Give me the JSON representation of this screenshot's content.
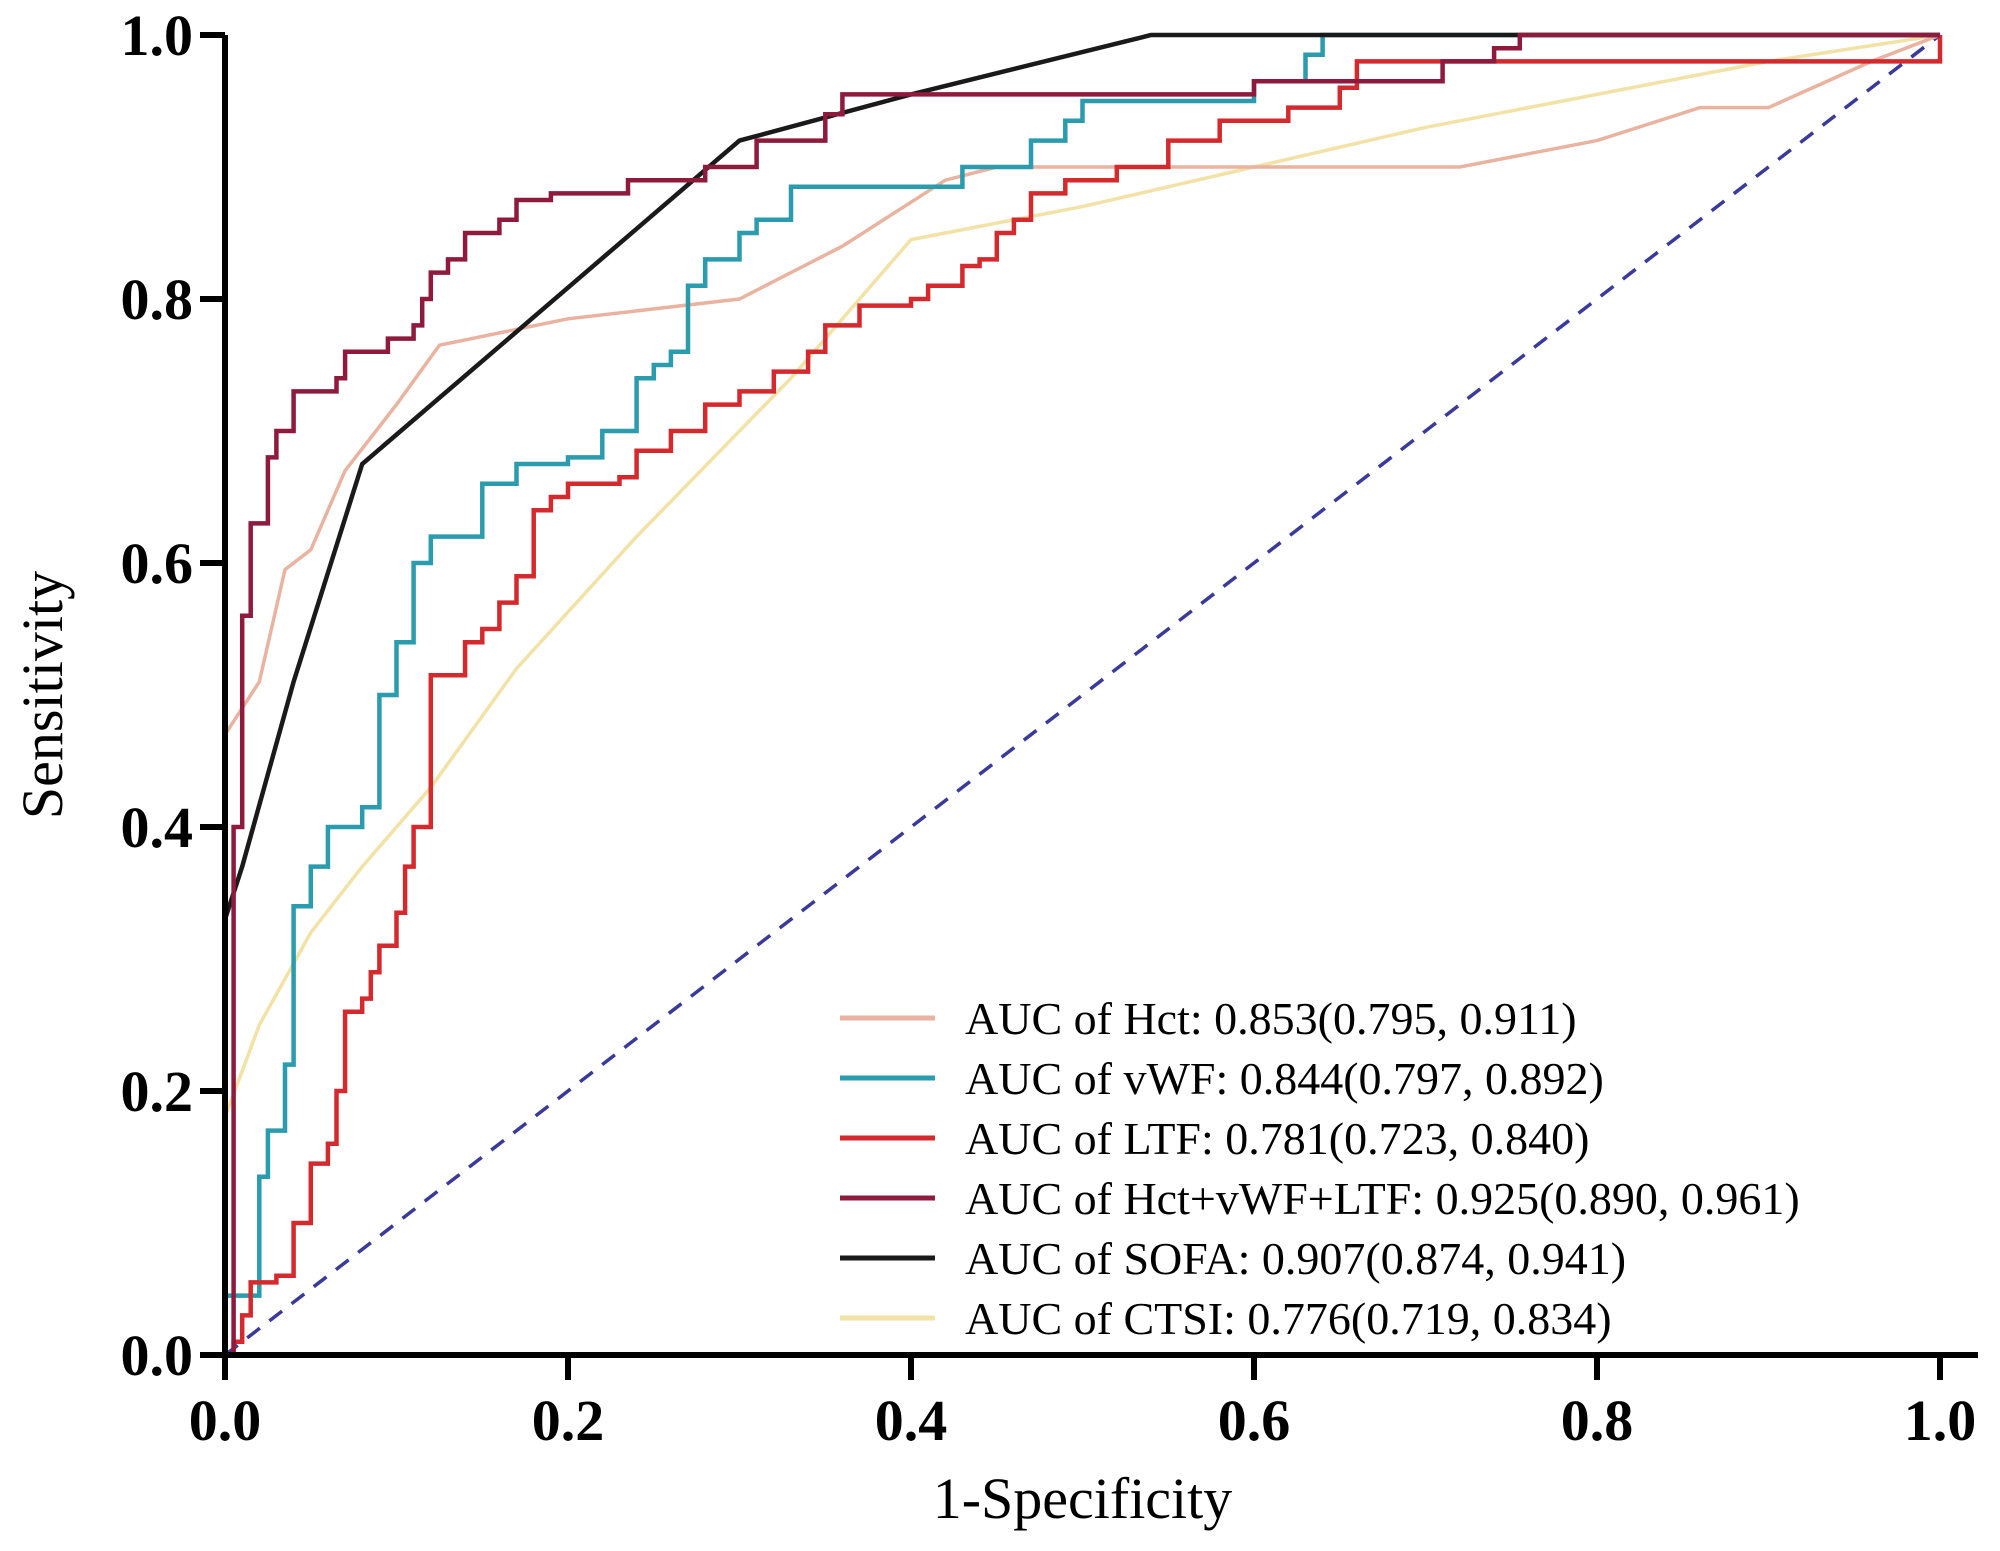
{
  "chart_data": {
    "type": "line",
    "title": "",
    "xlabel": "1-Specificity",
    "ylabel": "Sensitivity",
    "xlim": [
      0,
      1.0
    ],
    "ylim": [
      0,
      1.0
    ],
    "xticks": [
      "0.0",
      "0.2",
      "0.4",
      "0.6",
      "0.8",
      "1.0"
    ],
    "yticks": [
      "0.0",
      "0.2",
      "0.4",
      "0.6",
      "0.8",
      "1.0"
    ],
    "grid": false,
    "legend_position": "bottom-right",
    "reference_line": {
      "name": "Reference",
      "style": "dashed",
      "color": "#3a3a9a",
      "x": [
        0,
        1
      ],
      "y": [
        0,
        1
      ]
    },
    "series": [
      {
        "name": "AUC of Hct: 0.853(0.795, 0.911)",
        "color": "#E9B3A0",
        "x": [
          0,
          0,
          0.02,
          0.035,
          0.05,
          0.07,
          0.1,
          0.125,
          0.2,
          0.3,
          0.36,
          0.42,
          0.45,
          0.72,
          0.8,
          0.86,
          0.9,
          0.96,
          1.0
        ],
        "y": [
          0,
          0.47,
          0.51,
          0.595,
          0.61,
          0.67,
          0.72,
          0.765,
          0.785,
          0.8,
          0.84,
          0.89,
          0.9,
          0.9,
          0.92,
          0.945,
          0.945,
          0.98,
          1.0
        ]
      },
      {
        "name": "AUC of vWF: 0.844(0.797, 0.892)",
        "color": "#2B9BAE",
        "step": true,
        "x": [
          0,
          0,
          0.02,
          0.02,
          0.025,
          0.035,
          0.04,
          0.05,
          0.06,
          0.08,
          0.09,
          0.1,
          0.11,
          0.12,
          0.15,
          0.17,
          0.2,
          0.22,
          0.24,
          0.25,
          0.26,
          0.27,
          0.28,
          0.3,
          0.31,
          0.33,
          0.42,
          0.43,
          0.47,
          0.49,
          0.5,
          0.58,
          0.6,
          0.63,
          0.64,
          1.0
        ],
        "y": [
          0,
          0.045,
          0.045,
          0.135,
          0.17,
          0.22,
          0.34,
          0.37,
          0.4,
          0.415,
          0.5,
          0.54,
          0.6,
          0.62,
          0.66,
          0.675,
          0.68,
          0.7,
          0.74,
          0.75,
          0.76,
          0.81,
          0.83,
          0.85,
          0.86,
          0.885,
          0.885,
          0.9,
          0.92,
          0.935,
          0.95,
          0.95,
          0.965,
          0.985,
          1.0,
          1.0
        ]
      },
      {
        "name": "AUC of LTF: 0.781(0.723, 0.840)",
        "color": "#D42A2E",
        "step": true,
        "x": [
          0,
          0.005,
          0.01,
          0.015,
          0.03,
          0.04,
          0.05,
          0.06,
          0.065,
          0.07,
          0.08,
          0.085,
          0.09,
          0.1,
          0.105,
          0.11,
          0.12,
          0.12,
          0.14,
          0.15,
          0.16,
          0.17,
          0.18,
          0.18,
          0.19,
          0.2,
          0.23,
          0.24,
          0.26,
          0.28,
          0.3,
          0.32,
          0.34,
          0.35,
          0.37,
          0.4,
          0.41,
          0.43,
          0.44,
          0.45,
          0.46,
          0.47,
          0.49,
          0.52,
          0.55,
          0.58,
          0.62,
          0.65,
          0.66,
          1.0,
          1.0
        ],
        "y": [
          0,
          0.01,
          0.03,
          0.055,
          0.06,
          0.1,
          0.145,
          0.16,
          0.2,
          0.26,
          0.27,
          0.29,
          0.31,
          0.335,
          0.37,
          0.4,
          0.41,
          0.515,
          0.54,
          0.55,
          0.57,
          0.59,
          0.61,
          0.64,
          0.65,
          0.66,
          0.665,
          0.685,
          0.7,
          0.72,
          0.73,
          0.745,
          0.76,
          0.78,
          0.795,
          0.8,
          0.81,
          0.825,
          0.83,
          0.85,
          0.86,
          0.88,
          0.89,
          0.9,
          0.92,
          0.935,
          0.945,
          0.96,
          0.98,
          0.98,
          1.0
        ]
      },
      {
        "name": "AUC of Hct+vWF+LTF: 0.925(0.890, 0.961)",
        "color": "#8E1B3E",
        "step": true,
        "x": [
          0,
          0.005,
          0.005,
          0.01,
          0.015,
          0.025,
          0.03,
          0.04,
          0.065,
          0.07,
          0.095,
          0.11,
          0.115,
          0.12,
          0.13,
          0.14,
          0.16,
          0.17,
          0.19,
          0.235,
          0.28,
          0.31,
          0.35,
          0.36,
          0.6,
          0.71,
          0.74,
          0.755,
          1.0
        ],
        "y": [
          0,
          0.03,
          0.4,
          0.56,
          0.63,
          0.68,
          0.7,
          0.73,
          0.74,
          0.76,
          0.77,
          0.78,
          0.8,
          0.82,
          0.83,
          0.85,
          0.86,
          0.875,
          0.88,
          0.89,
          0.9,
          0.92,
          0.94,
          0.955,
          0.965,
          0.98,
          0.99,
          1.0,
          1.0
        ]
      },
      {
        "name": "AUC of SOFA: 0.907(0.874, 0.941)",
        "color": "#1A1A1A",
        "x": [
          0,
          0,
          0.01,
          0.025,
          0.04,
          0.08,
          0.3,
          0.4,
          0.54,
          1.0
        ],
        "y": [
          0,
          0.33,
          0.37,
          0.44,
          0.51,
          0.675,
          0.92,
          0.955,
          1.0,
          1.0
        ]
      },
      {
        "name": "AUC of CTSI: 0.776(0.719, 0.834)",
        "color": "#F2E2A6",
        "x": [
          0,
          0.02,
          0.05,
          0.08,
          0.12,
          0.17,
          0.24,
          0.33,
          0.4,
          0.5,
          0.6,
          0.7,
          0.8,
          0.9,
          1.0
        ],
        "y": [
          0.18,
          0.25,
          0.32,
          0.37,
          0.43,
          0.52,
          0.62,
          0.74,
          0.845,
          0.87,
          0.9,
          0.93,
          0.955,
          0.98,
          1.0
        ]
      }
    ]
  }
}
